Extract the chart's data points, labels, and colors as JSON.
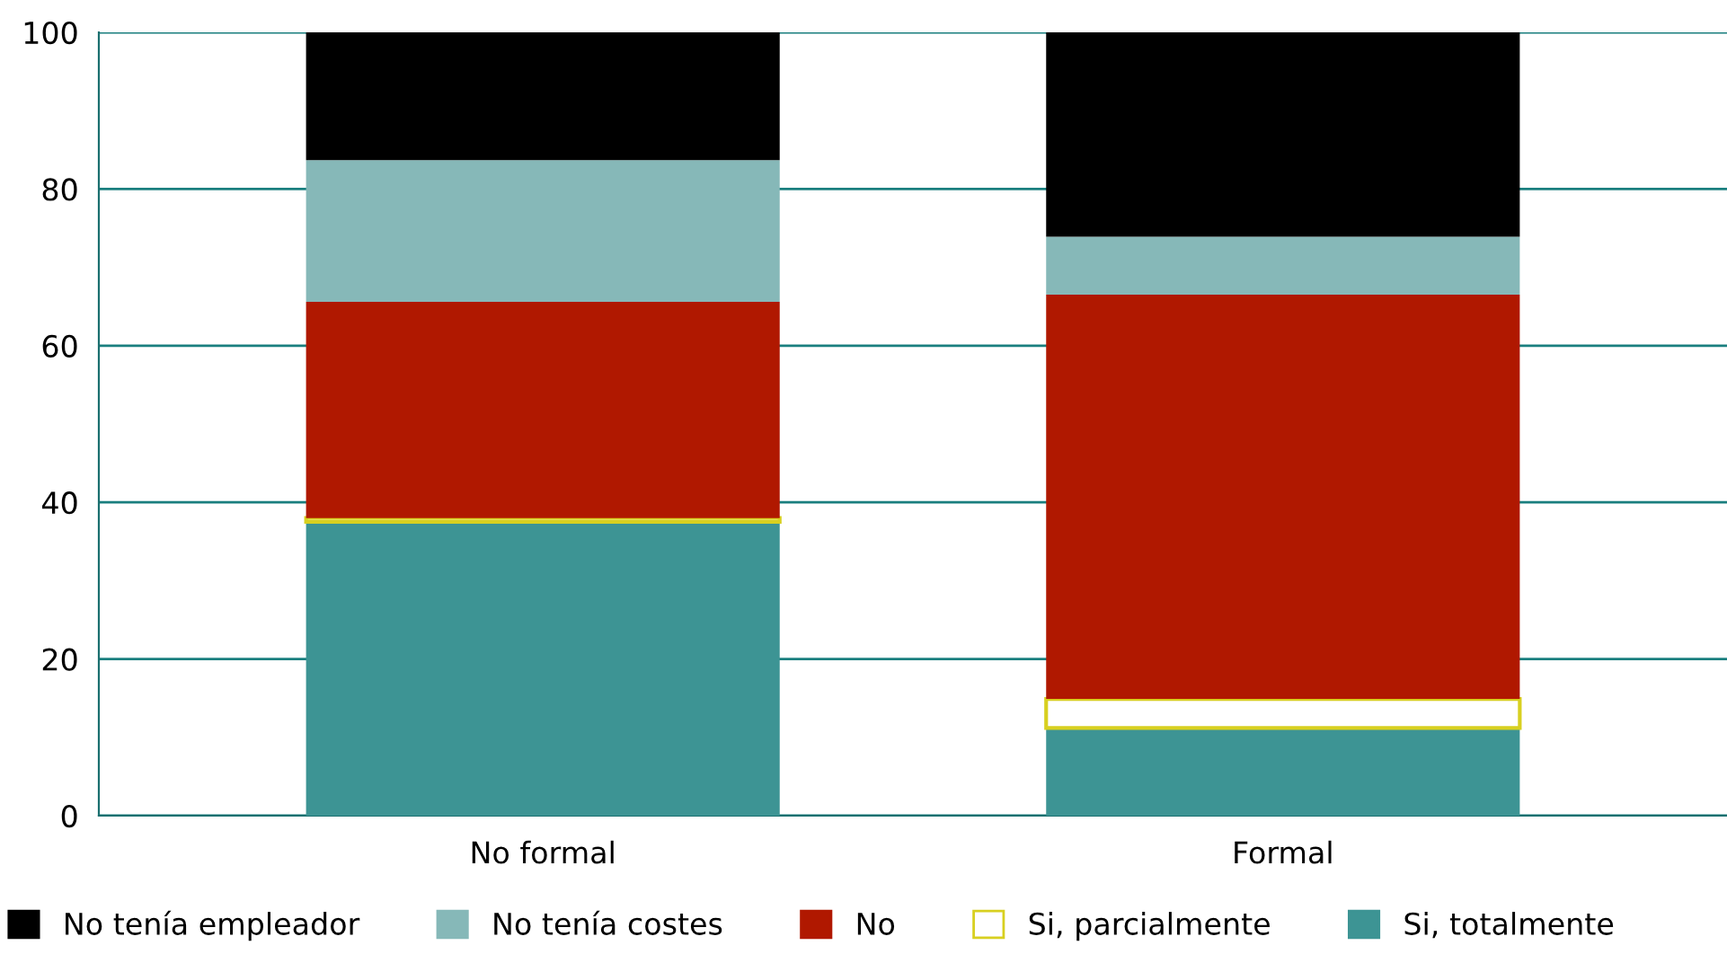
{
  "chart_data": {
    "type": "bar",
    "stacked": true,
    "categories": [
      "No formal",
      "Formal"
    ],
    "series": [
      {
        "name": "Si, totalmente",
        "color": "#3d9494",
        "values": [
          37.5,
          11.2
        ]
      },
      {
        "name": "Si, parcialmente",
        "color": "#ffffff",
        "values": [
          0.5,
          3.7
        ]
      },
      {
        "name": "No",
        "color": "#b01800",
        "values": [
          27.6,
          51.6
        ]
      },
      {
        "name": "No tenía costes",
        "color": "#86b8b8",
        "values": [
          18.1,
          7.4
        ]
      },
      {
        "name": "No tenía empleador",
        "color": "#000000",
        "values": [
          16.3,
          26.1
        ]
      }
    ],
    "ylim": [
      0,
      100
    ],
    "yticks": [
      0,
      20,
      40,
      60,
      80,
      100
    ],
    "grid": "y",
    "legend": "bottom"
  }
}
